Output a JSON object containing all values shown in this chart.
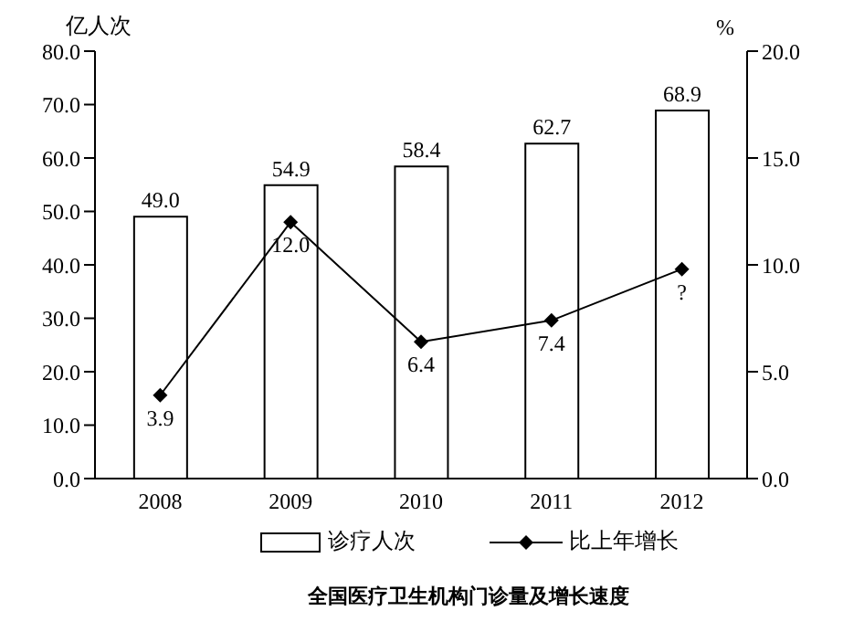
{
  "chart_data": {
    "type": "bar",
    "title": "全国医疗卫生机构门诊量及增长速度",
    "ylabel": "亿人次",
    "y2label": "%",
    "categories": [
      "2008",
      "2009",
      "2010",
      "2011",
      "2012"
    ],
    "series": [
      {
        "name": "诊疗人次",
        "color": "#ffffff",
        "values": [
          49.0,
          54.9,
          58.4,
          62.7,
          68.9
        ],
        "value_labels": [
          "49.0",
          "54.9",
          "58.4",
          "62.7",
          "68.9"
        ]
      },
      {
        "name": "比上年增长",
        "type": "line",
        "axis": "y2",
        "color": "#000000",
        "values": [
          3.9,
          12.0,
          6.4,
          7.4,
          9.8
        ],
        "value_labels": [
          "3.9",
          "12.0",
          "6.4",
          "7.4",
          "?"
        ]
      }
    ],
    "ylim": [
      0,
      80
    ],
    "yticks": [
      {
        "value": 0,
        "label": "0.0"
      },
      {
        "value": 10,
        "label": "10.0"
      },
      {
        "value": 20,
        "label": "20.0"
      },
      {
        "value": 30,
        "label": "30.0"
      },
      {
        "value": 40,
        "label": "40.0"
      },
      {
        "value": 50,
        "label": "50.0"
      },
      {
        "value": 60,
        "label": "60.0"
      },
      {
        "value": 70,
        "label": "70.0"
      },
      {
        "value": 80,
        "label": "80.0"
      }
    ],
    "y2lim": [
      0,
      20
    ],
    "y2ticks": [
      {
        "value": 0,
        "label": "0.0"
      },
      {
        "value": 5,
        "label": "5.0"
      },
      {
        "value": 10,
        "label": "10.0"
      },
      {
        "value": 15,
        "label": "15.0"
      },
      {
        "value": 20,
        "label": "20.0"
      }
    ],
    "marker": "diamond",
    "line_style": "solid",
    "legend": "bottom",
    "grid": false
  }
}
